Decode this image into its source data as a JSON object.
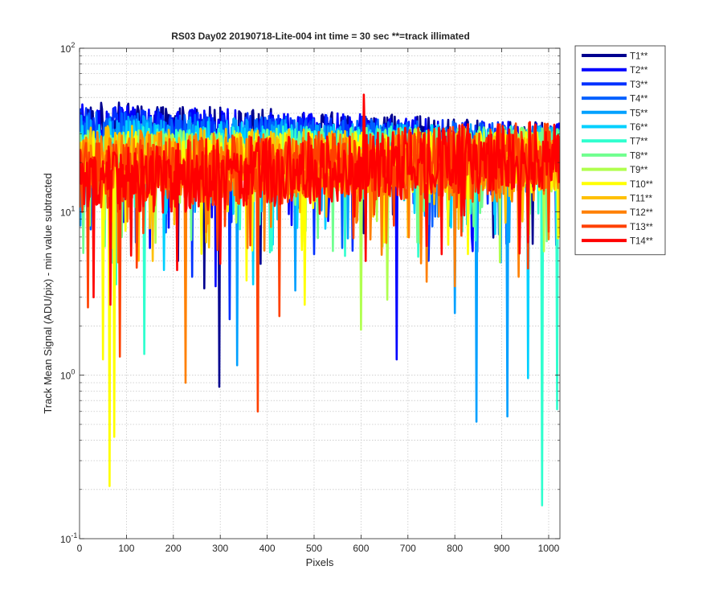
{
  "chart_data": {
    "type": "line",
    "title": "RS03 Day02 20190718-Lite-004 int time = 30 sec   **=track illimated",
    "xlabel": "Pixels",
    "ylabel": "Track Mean Signal (ADU/pix) - min value subtracted",
    "xlim": [
      0,
      1024
    ],
    "ylim": [
      0.1,
      100
    ],
    "yscale": "log",
    "grid": "y-major-and-minor",
    "legend": "outside-top-right",
    "x_ticks": [
      "0",
      "100",
      "200",
      "300",
      "400",
      "500",
      "600",
      "700",
      "800",
      "900",
      "1000"
    ],
    "x_tick_values": [
      0,
      100,
      200,
      300,
      400,
      500,
      600,
      700,
      800,
      900,
      1000
    ],
    "y_ticks": [
      {
        "value": 0.1,
        "base": "10",
        "exp": "-1"
      },
      {
        "value": 1,
        "base": "10",
        "exp": "0"
      },
      {
        "value": 10,
        "base": "10",
        "exp": "1"
      },
      {
        "value": 100,
        "base": "10",
        "exp": "2"
      }
    ],
    "series": [
      {
        "name": "T1**",
        "color": "#00008f",
        "base_left": 33,
        "base_right": 24,
        "noise": 0.16,
        "dips": [
          [
            298,
            0.85
          ],
          [
            265,
            3.4
          ],
          [
            385,
            4.8
          ],
          [
            210,
            5.0
          ]
        ]
      },
      {
        "name": "T2**",
        "color": "#0000ff",
        "base_left": 32,
        "base_right": 24,
        "noise": 0.16,
        "dips": [
          [
            675,
            1.25
          ],
          [
            290,
            3.5
          ],
          [
            150,
            6.0
          ]
        ]
      },
      {
        "name": "T3**",
        "color": "#0030ff",
        "base_left": 30,
        "base_right": 23,
        "noise": 0.17,
        "dips": [
          [
            320,
            2.2
          ],
          [
            240,
            4.0
          ],
          [
            500,
            5.5
          ]
        ]
      },
      {
        "name": "T4**",
        "color": "#0060ff",
        "base_left": 28,
        "base_right": 23,
        "noise": 0.17,
        "dips": [
          [
            120,
            6.5
          ],
          [
            560,
            6.0
          ]
        ]
      },
      {
        "name": "T5**",
        "color": "#00a0ff",
        "base_left": 26,
        "base_right": 22,
        "noise": 0.18,
        "dips": [
          [
            845,
            0.52
          ],
          [
            912,
            0.56
          ],
          [
            335,
            1.15
          ],
          [
            800,
            2.4
          ],
          [
            460,
            3.3
          ]
        ]
      },
      {
        "name": "T6**",
        "color": "#00d0ff",
        "base_left": 24,
        "base_right": 22,
        "noise": 0.18,
        "dips": [
          [
            955,
            0.96
          ],
          [
            180,
            4.4
          ],
          [
            370,
            3.6
          ]
        ]
      },
      {
        "name": "T7**",
        "color": "#30ffcf",
        "base_left": 22,
        "base_right": 22,
        "noise": 0.18,
        "dips": [
          [
            985,
            0.16
          ],
          [
            1018,
            0.62
          ],
          [
            137,
            1.35
          ],
          [
            78,
            3.6
          ],
          [
            410,
            5.8
          ]
        ]
      },
      {
        "name": "T8**",
        "color": "#70ff8f",
        "base_left": 21,
        "base_right": 22,
        "noise": 0.18,
        "dips": [
          [
            720,
            6.5
          ],
          [
            90,
            7.0
          ]
        ]
      },
      {
        "name": "T9**",
        "color": "#b0ff4f",
        "base_left": 20,
        "base_right": 22,
        "noise": 0.18,
        "dips": [
          [
            600,
            1.9
          ],
          [
            655,
            2.9
          ],
          [
            70,
            6.0
          ]
        ]
      },
      {
        "name": "T10**",
        "color": "#ffff00",
        "base_left": 20,
        "base_right": 20,
        "noise": 0.19,
        "dips": [
          [
            63,
            0.21
          ],
          [
            74,
            0.42
          ],
          [
            50,
            1.25
          ],
          [
            355,
            3.8
          ],
          [
            480,
            2.7
          ]
        ]
      },
      {
        "name": "T11**",
        "color": "#ffc000",
        "base_left": 22,
        "base_right": 19,
        "noise": 0.19,
        "dips": [
          [
            155,
            5.0
          ],
          [
            270,
            6.5
          ],
          [
            700,
            7.0
          ]
        ]
      },
      {
        "name": "T12**",
        "color": "#ff8000",
        "base_left": 20,
        "base_right": 18,
        "noise": 0.2,
        "dips": [
          [
            225,
            0.9
          ],
          [
            800,
            3.5
          ],
          [
            935,
            4.0
          ]
        ]
      },
      {
        "name": "T13**",
        "color": "#ff4000",
        "base_left": 16,
        "base_right": 22,
        "noise": 0.22,
        "dips": [
          [
            380,
            0.6
          ],
          [
            85,
            1.3
          ],
          [
            425,
            2.3
          ],
          [
            18,
            2.6
          ],
          [
            955,
            4.5
          ]
        ]
      },
      {
        "name": "T14**",
        "color": "#ff0000",
        "base_left": 15,
        "base_right": 22,
        "noise": 0.22,
        "dips": [
          [
            30,
            3.0
          ],
          [
            65,
            2.7
          ],
          [
            300,
            4.8
          ],
          [
            610,
            5.0
          ]
        ],
        "peaks": [
          [
            605,
            52
          ]
        ]
      }
    ]
  }
}
